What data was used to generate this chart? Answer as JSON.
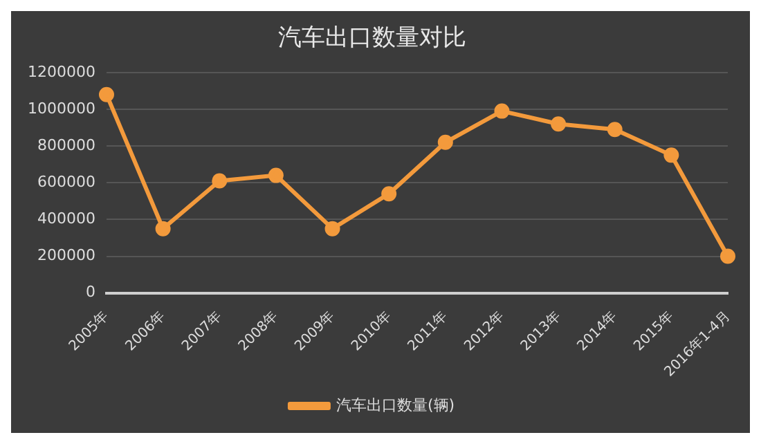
{
  "chart_data": {
    "type": "line",
    "title": "汽车出口数量对比",
    "categories": [
      "2005年",
      "2006年",
      "2007年",
      "2008年",
      "2009年",
      "2010年",
      "2011年",
      "2012年",
      "2013年",
      "2014年",
      "2015年",
      "2016年1-4月"
    ],
    "series": [
      {
        "name": "汽车出口数量(辆)",
        "color": "#f39a3c",
        "values": [
          1080000,
          350000,
          610000,
          640000,
          350000,
          540000,
          820000,
          990000,
          920000,
          890000,
          750000,
          200000
        ]
      }
    ],
    "ylim": [
      0,
      1200000
    ],
    "yticks": [
      0,
      200000,
      400000,
      600000,
      800000,
      1000000,
      1200000
    ],
    "grid": "y",
    "legend": "bottom",
    "marker": "circle",
    "line_style": "solid"
  }
}
